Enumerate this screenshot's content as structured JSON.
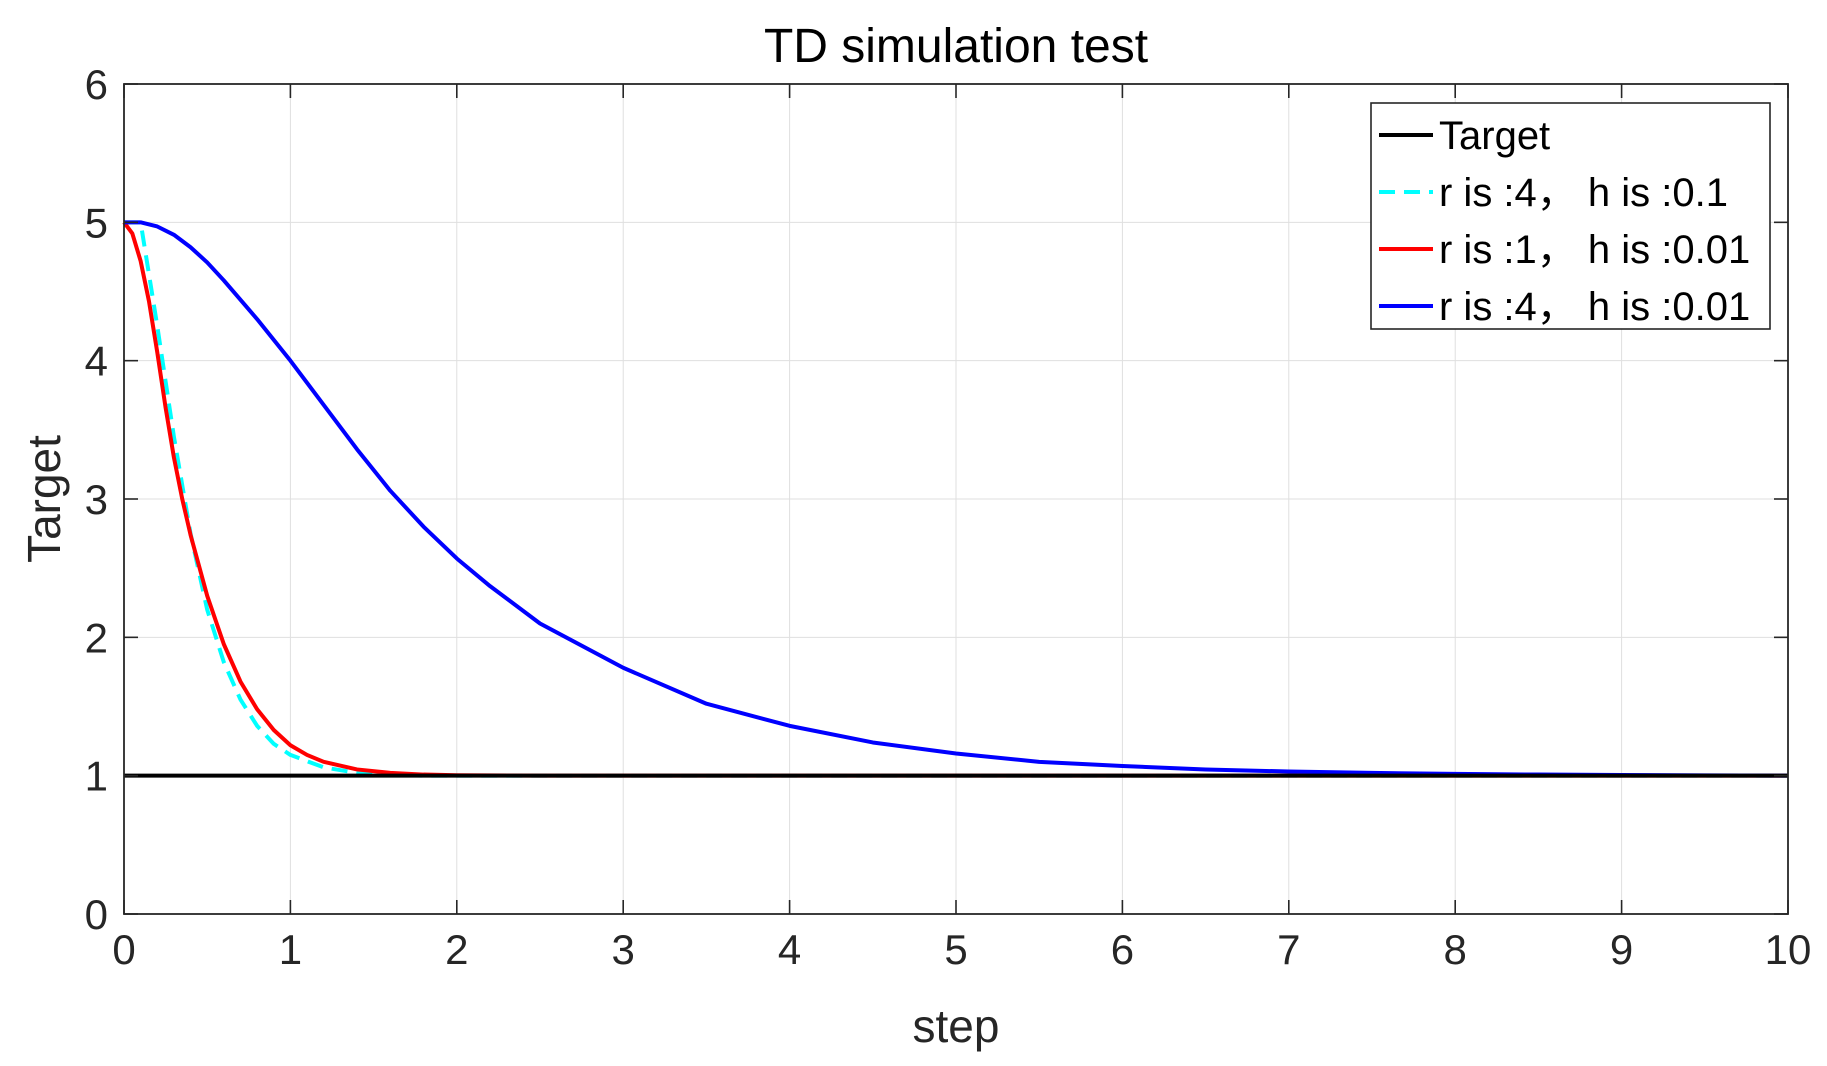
{
  "chart_data": {
    "type": "line",
    "title": "TD simulation test",
    "xlabel": "step",
    "ylabel": "Target",
    "xlim": [
      0,
      10
    ],
    "ylim": [
      0,
      6
    ],
    "xticks": [
      "0",
      "1",
      "2",
      "3",
      "4",
      "5",
      "6",
      "7",
      "8",
      "9",
      "10"
    ],
    "yticks": [
      "0",
      "1",
      "2",
      "3",
      "4",
      "5",
      "6"
    ],
    "grid": true,
    "legend_position": "top-right",
    "series": [
      {
        "name": "Target",
        "color": "#000000",
        "dash": "solid",
        "x": [
          0,
          10
        ],
        "y": [
          1,
          1
        ]
      },
      {
        "name": "r is :4， h is :0.1",
        "color": "#00FFFF",
        "dash": "dashed",
        "x": [
          0,
          0.1,
          0.2,
          0.3,
          0.4,
          0.5,
          0.6,
          0.7,
          0.8,
          0.9,
          1.0,
          1.2,
          1.4,
          1.6,
          1.8,
          2.0,
          2.5,
          3.0,
          4.0,
          5.0,
          6.0,
          7.0,
          8.0,
          9.0,
          10.0
        ],
        "y": [
          5.0,
          5.0,
          4.25,
          3.45,
          2.75,
          2.2,
          1.82,
          1.55,
          1.36,
          1.23,
          1.15,
          1.06,
          1.02,
          1.005,
          1.0,
          1.0,
          1.0,
          1.0,
          1.0,
          1.0,
          1.0,
          1.0,
          1.0,
          1.0,
          1.0
        ]
      },
      {
        "name": "r is :1， h is :0.01",
        "color": "#FF0000",
        "dash": "solid",
        "x": [
          0,
          0.05,
          0.1,
          0.15,
          0.2,
          0.25,
          0.3,
          0.35,
          0.4,
          0.5,
          0.6,
          0.7,
          0.8,
          0.9,
          1.0,
          1.1,
          1.2,
          1.4,
          1.6,
          1.8,
          2.0,
          2.5,
          3.0,
          4.0,
          5.0,
          6.0,
          7.0,
          8.0,
          9.0,
          10.0
        ],
        "y": [
          5.0,
          4.92,
          4.72,
          4.43,
          4.06,
          3.66,
          3.3,
          3.0,
          2.74,
          2.3,
          1.95,
          1.68,
          1.48,
          1.33,
          1.22,
          1.15,
          1.1,
          1.045,
          1.02,
          1.008,
          1.003,
          1.0,
          1.0,
          1.0,
          1.0,
          1.0,
          1.0,
          1.0,
          1.0,
          1.0
        ]
      },
      {
        "name": "r is :4， h is :0.01",
        "color": "#0000FF",
        "dash": "solid",
        "x": [
          0,
          0.1,
          0.2,
          0.3,
          0.4,
          0.5,
          0.6,
          0.8,
          1.0,
          1.2,
          1.4,
          1.6,
          1.8,
          2.0,
          2.2,
          2.5,
          3.0,
          3.5,
          4.0,
          4.5,
          5.0,
          5.5,
          6.0,
          6.5,
          7.0,
          7.5,
          8.0,
          8.5,
          9.0,
          9.5,
          10.0
        ],
        "y": [
          5.0,
          5.0,
          4.97,
          4.91,
          4.82,
          4.71,
          4.58,
          4.3,
          4.0,
          3.68,
          3.36,
          3.06,
          2.8,
          2.57,
          2.37,
          2.1,
          1.78,
          1.52,
          1.36,
          1.24,
          1.16,
          1.1,
          1.07,
          1.045,
          1.03,
          1.02,
          1.013,
          1.008,
          1.005,
          1.002,
          1.0
        ]
      }
    ]
  }
}
